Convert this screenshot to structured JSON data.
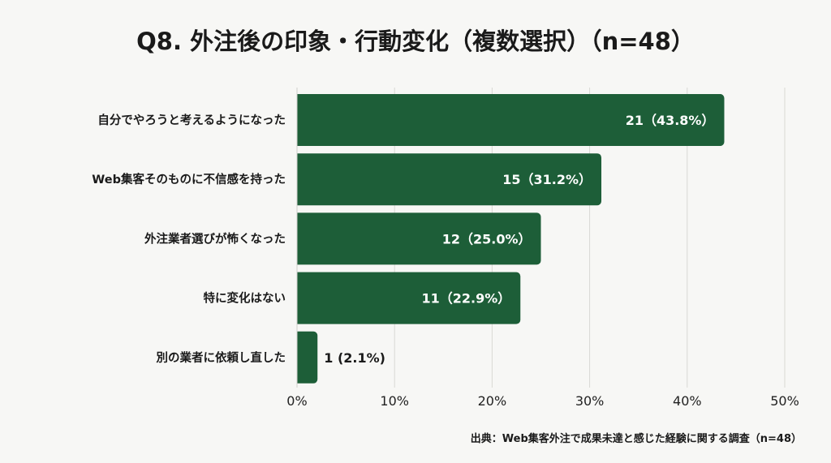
{
  "chart_data": {
    "type": "bar",
    "orientation": "horizontal",
    "title": "Q8. 外注後の印象・行動変化（複数選択）（n=48）",
    "categories": [
      "自分でやろうと考えるようになった",
      "Web集客そのものに不信感を持った",
      "外注業者選びが怖くなった",
      "特に変化はない",
      "別の業者に依頼し直した"
    ],
    "counts": [
      21,
      15,
      12,
      11,
      1
    ],
    "values": [
      43.8,
      31.2,
      25.0,
      22.9,
      2.1
    ],
    "data_labels": [
      "21（43.8%）",
      "15（31.2%）",
      "12（25.0%）",
      "11（22.9%）",
      "1 (2.1%)"
    ],
    "xlim": [
      0,
      50
    ],
    "xticks": [
      "0%",
      "10%",
      "20%",
      "30%",
      "40%",
      "50%"
    ],
    "grid": true,
    "bar_color": "#1d5e38",
    "source": "出典：Web集客外注で成果未達と感じた経験に関する調査（n=48）"
  }
}
